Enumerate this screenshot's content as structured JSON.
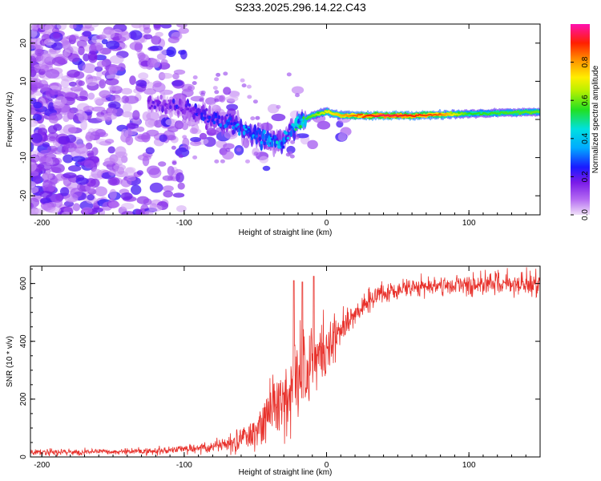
{
  "title": "S233.2025.296.14.22.C43",
  "colors": {
    "snr_line": "#e8322c",
    "axis": "#000000",
    "background": "#ffffff"
  },
  "chart_data": [
    {
      "type": "heatmap",
      "name": "spectrogram",
      "xlabel": "Height of straight line (km)",
      "ylabel": "Frequency (Hz)",
      "xlim": [
        -208,
        150
      ],
      "ylim": [
        -25,
        25
      ],
      "xticks": [
        -200,
        -100,
        0,
        100
      ],
      "yticks": [
        -20,
        -10,
        0,
        10,
        20
      ],
      "colorbar": {
        "label": "Normalized spectral amplitude",
        "range": [
          0,
          1
        ],
        "ticks": [
          "0.0",
          "0.2",
          "0.4",
          "0.6",
          "0.8"
        ],
        "colormap": "rainbow (violet → blue → cyan → green → yellow → orange → red → magenta)"
      },
      "ridge_center_freq_hz": [
        {
          "x": -120,
          "f": 4
        },
        {
          "x": -100,
          "f": 3
        },
        {
          "x": -80,
          "f": 0
        },
        {
          "x": -60,
          "f": -2
        },
        {
          "x": -45,
          "f": -5
        },
        {
          "x": -32,
          "f": -6
        },
        {
          "x": -20,
          "f": -1
        },
        {
          "x": -10,
          "f": 1
        },
        {
          "x": 0,
          "f": 2
        },
        {
          "x": 10,
          "f": 1
        },
        {
          "x": 25,
          "f": 1
        },
        {
          "x": 60,
          "f": 1
        },
        {
          "x": 100,
          "f": 1.5
        },
        {
          "x": 150,
          "f": 2
        }
      ],
      "ridge_amplitude": [
        {
          "x": -120,
          "a": 0.15
        },
        {
          "x": -90,
          "a": 0.2
        },
        {
          "x": -60,
          "a": 0.3
        },
        {
          "x": -40,
          "a": 0.35
        },
        {
          "x": -25,
          "a": 0.3
        },
        {
          "x": -15,
          "a": 0.55
        },
        {
          "x": 0,
          "a": 0.7
        },
        {
          "x": 20,
          "a": 0.85
        },
        {
          "x": 40,
          "a": 0.95
        },
        {
          "x": 80,
          "a": 0.85
        },
        {
          "x": 100,
          "a": 0.55
        },
        {
          "x": 150,
          "a": 0.6
        }
      ]
    },
    {
      "type": "line",
      "name": "snr",
      "xlabel": "Height of straight line (km)",
      "ylabel": "SNR (10 * v/v)",
      "xlim": [
        -208,
        150
      ],
      "ylim": [
        0,
        660
      ],
      "xticks": [
        -200,
        -100,
        0,
        100
      ],
      "yticks": [
        0,
        200,
        400,
        600
      ],
      "series": [
        {
          "name": "SNR",
          "envelope_x": [
            -208,
            -150,
            -120,
            -100,
            -80,
            -70,
            -60,
            -50,
            -40,
            -30,
            -20,
            -10,
            0,
            10,
            20,
            30,
            40,
            60,
            80,
            100,
            120,
            150
          ],
          "envelope_mean": [
            15,
            18,
            20,
            25,
            35,
            45,
            60,
            90,
            140,
            210,
            280,
            330,
            380,
            440,
            490,
            540,
            570,
            585,
            590,
            595,
            600,
            600
          ],
          "envelope_noise": [
            10,
            10,
            12,
            15,
            20,
            25,
            40,
            60,
            90,
            130,
            150,
            130,
            90,
            60,
            45,
            35,
            30,
            30,
            30,
            35,
            35,
            40
          ],
          "peak_values": [
            {
              "x": -23,
              "y": 610
            },
            {
              "x": -17,
              "y": 605
            },
            {
              "x": -9,
              "y": 625
            }
          ]
        }
      ]
    }
  ]
}
